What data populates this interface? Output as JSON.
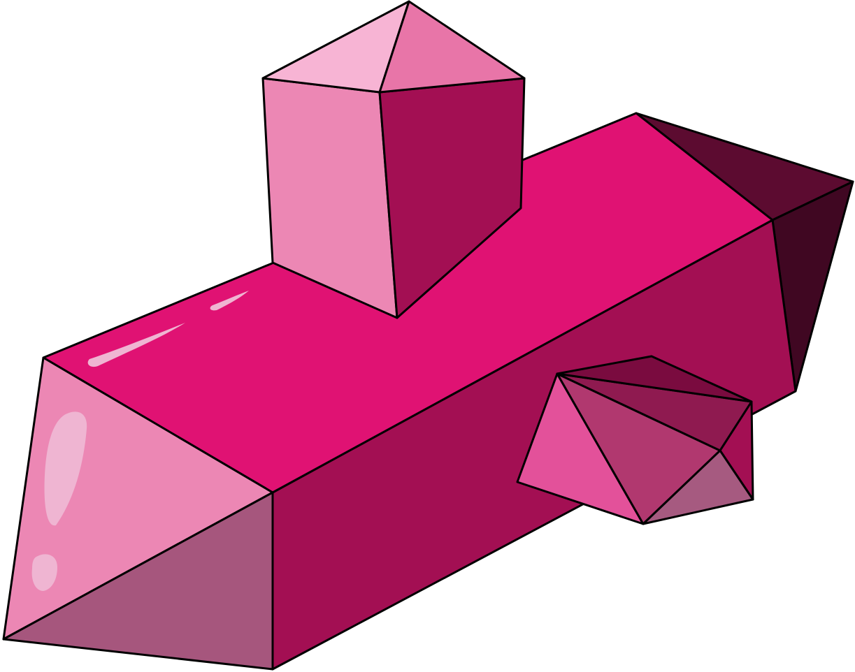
{
  "colors": {
    "outline": "#000000",
    "top_magenta": "#e01273",
    "front_dark_magenta": "#a30f53",
    "left_pink": "#ec87b4",
    "left_lower_mauve": "#a6567d",
    "right_tip_dark": "#5c0b30",
    "right_tip_darker": "#400722",
    "prism_cap_light": "#f7b4d4",
    "prism_cap_mid": "#e875a8",
    "crystal_left": "#e3519a",
    "crystal_mid": "#b1386f",
    "crystal_upper_right": "#8f1a50",
    "crystal_top": "#7a0b3f",
    "crystal_lower_right": "#a65a80",
    "highlight": "#efb5d2"
  }
}
